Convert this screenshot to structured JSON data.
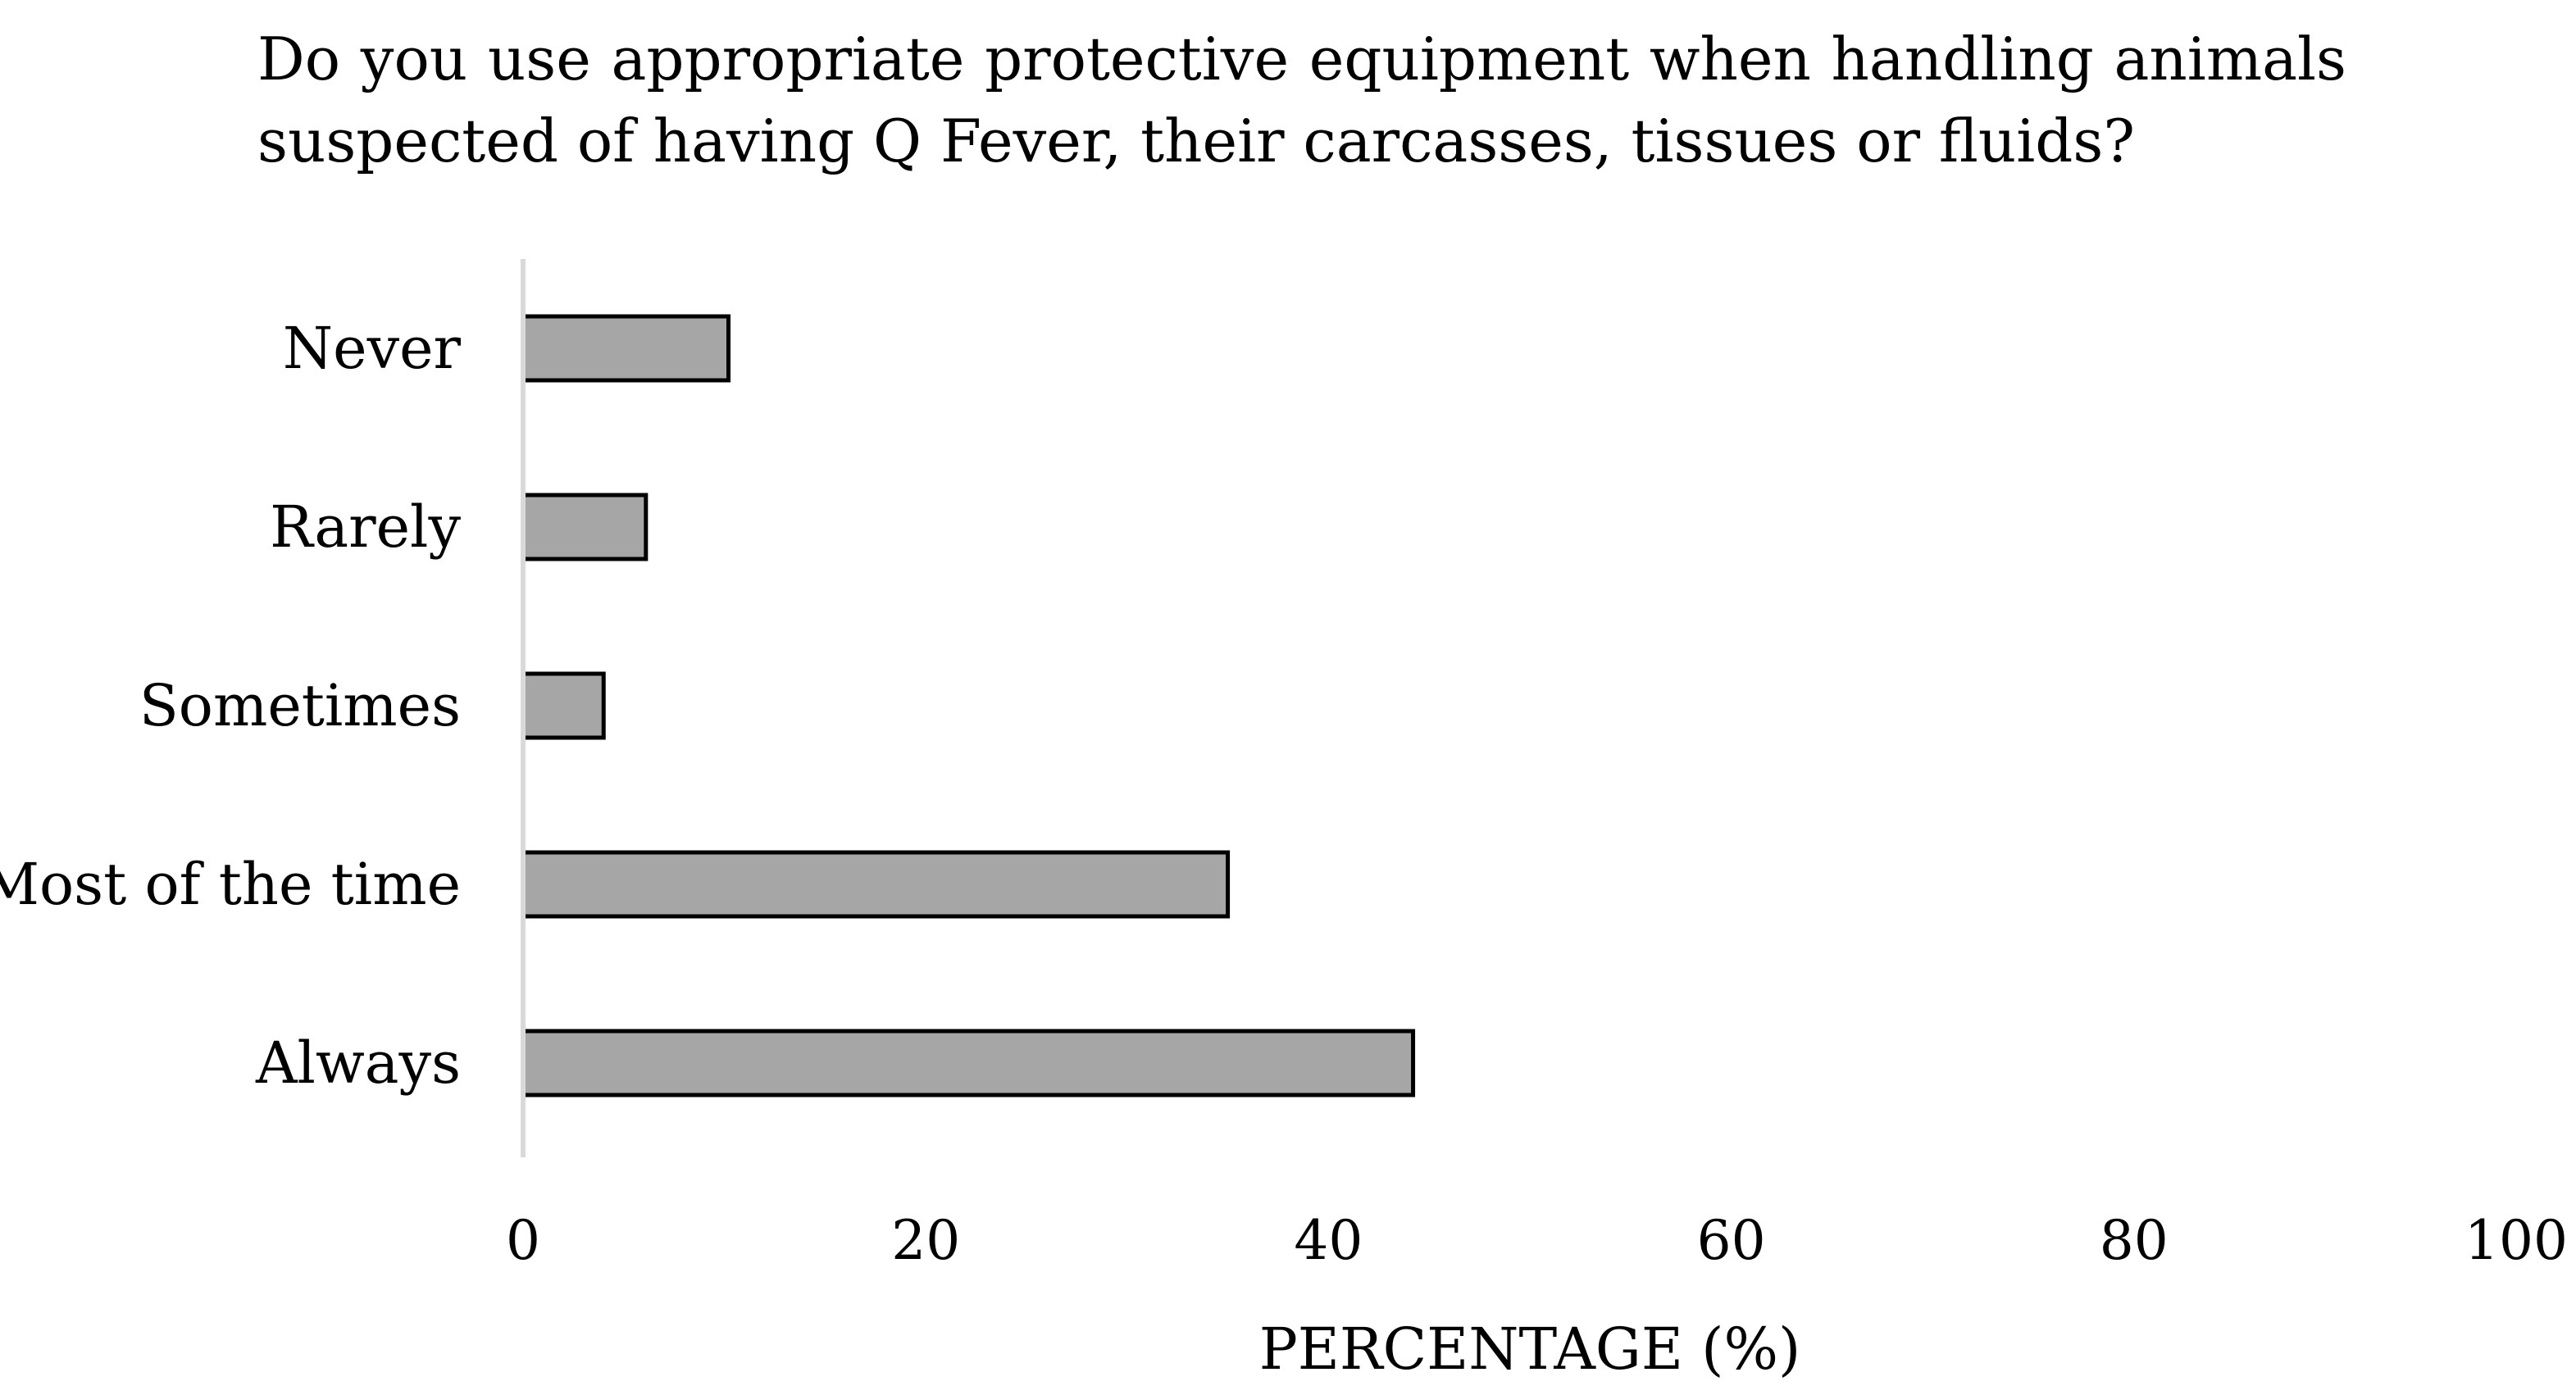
{
  "chart_data": {
    "type": "bar",
    "orientation": "horizontal",
    "title": "Do you use appropriate protective equipment when handling animals suspected of having Q Fever, their carcasses, tissues or fluids?",
    "categories": [
      "Never",
      "Rarely",
      "Sometimes",
      "Most of the time",
      "Always"
    ],
    "values": [
      10.2,
      6.1,
      4.0,
      35.0,
      44.2
    ],
    "xlabel": "PERCENTAGE (%)",
    "ylabel": "",
    "xlim": [
      0,
      100
    ],
    "xticks": [
      "0",
      "20",
      "40",
      "60",
      "80",
      "100"
    ],
    "grid": false,
    "legend": "none",
    "colors": {
      "bar_fill": "#a6a6a6",
      "bar_stroke": "#000000",
      "axis_line": "#d9d9d9"
    }
  }
}
